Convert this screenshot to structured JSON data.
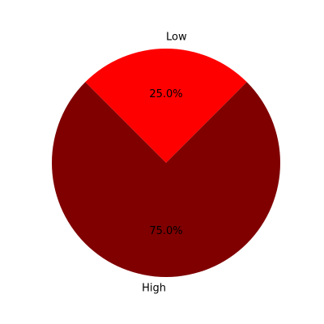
{
  "chart_data": {
    "type": "pie",
    "slices": [
      {
        "label": "Low",
        "value": 25.0,
        "percent_label": "25.0%",
        "color": "#ff0000"
      },
      {
        "label": "High",
        "value": 75.0,
        "percent_label": "75.0%",
        "color": "#800000"
      }
    ],
    "title": "",
    "legend": "none"
  }
}
